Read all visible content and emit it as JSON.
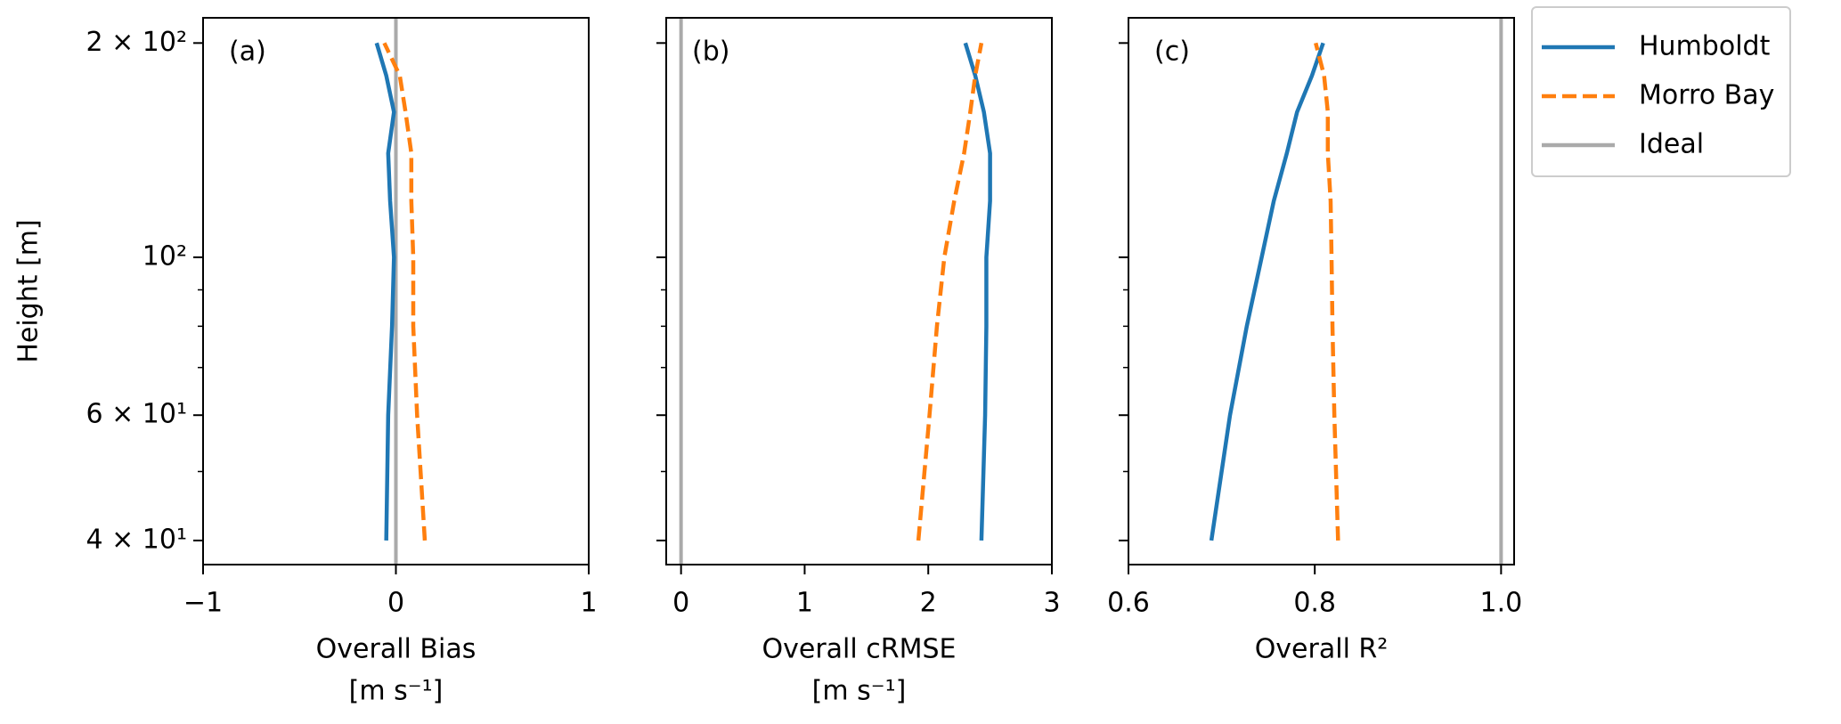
{
  "chart_data": [
    {
      "type": "line",
      "panel_label": "(a)",
      "ylabel": "Height [m]",
      "xlabel": [
        "Overall Bias",
        "[m s⁻¹]"
      ],
      "y": [
        40,
        60,
        80,
        100,
        120,
        140,
        160,
        180,
        200
      ],
      "ylog": true,
      "ylim": [
        37,
        217
      ],
      "yticks": [
        {
          "value": 40,
          "label": "4 × 10¹"
        },
        {
          "value": 60,
          "label": "6 × 10¹"
        },
        {
          "value": 100,
          "label": "10²"
        },
        {
          "value": 200,
          "label": "2 × 10²"
        }
      ],
      "yminorticks": [
        50,
        70,
        80,
        90
      ],
      "xlim": [
        -1,
        1
      ],
      "xticks": [
        {
          "value": -1,
          "label": "−1"
        },
        0,
        1
      ],
      "series": [
        {
          "name": "Humboldt",
          "color": "#1f77b4",
          "linestyle": "solid",
          "values": [
            -0.05,
            -0.04,
            -0.02,
            -0.01,
            -0.03,
            -0.04,
            -0.01,
            -0.05,
            -0.1
          ]
        },
        {
          "name": "Morro Bay",
          "color": "#ff7f0e",
          "linestyle": "dashed",
          "values": [
            0.15,
            0.11,
            0.09,
            0.09,
            0.08,
            0.08,
            0.05,
            0.02,
            -0.06
          ]
        }
      ],
      "reference": {
        "name": "Ideal",
        "color": "#aaaaaa",
        "value": 0
      },
      "legend": "outside upper right"
    },
    {
      "type": "line",
      "panel_label": "(b)",
      "xlabel": [
        "Overall cRMSE",
        "[m s⁻¹]"
      ],
      "sharey": true,
      "y": [
        40,
        60,
        80,
        100,
        120,
        140,
        160,
        180,
        200
      ],
      "ylog": true,
      "ylim": [
        37,
        217
      ],
      "xlim": [
        -0.12,
        3
      ],
      "xticks": [
        0,
        1,
        2,
        3
      ],
      "series": [
        {
          "name": "Humboldt",
          "color": "#1f77b4",
          "linestyle": "solid",
          "values": [
            2.43,
            2.46,
            2.47,
            2.47,
            2.5,
            2.5,
            2.45,
            2.38,
            2.3
          ]
        },
        {
          "name": "Morro Bay",
          "color": "#ff7f0e",
          "linestyle": "dashed",
          "values": [
            1.92,
            2.01,
            2.07,
            2.13,
            2.21,
            2.29,
            2.34,
            2.38,
            2.43
          ]
        }
      ],
      "reference": {
        "name": "Ideal",
        "color": "#aaaaaa",
        "value": 0
      }
    },
    {
      "type": "line",
      "panel_label": "(c)",
      "xlabel": [
        "Overall R²"
      ],
      "sharey": true,
      "y": [
        40,
        60,
        80,
        100,
        120,
        140,
        160,
        180,
        200
      ],
      "ylog": true,
      "ylim": [
        37,
        217
      ],
      "xlim": [
        0.6,
        1.014
      ],
      "xticks": [
        0.6,
        0.8,
        {
          "value": 1,
          "label": "1.0"
        }
      ],
      "series": [
        {
          "name": "Humboldt",
          "color": "#1f77b4",
          "linestyle": "solid",
          "values": [
            0.689,
            0.709,
            0.727,
            0.743,
            0.756,
            0.77,
            0.781,
            0.797,
            0.809
          ]
        },
        {
          "name": "Morro Bay",
          "color": "#ff7f0e",
          "linestyle": "dashed",
          "values": [
            0.825,
            0.821,
            0.819,
            0.818,
            0.817,
            0.814,
            0.814,
            0.81,
            0.801
          ]
        }
      ],
      "reference": {
        "name": "Ideal",
        "color": "#aaaaaa",
        "value": 1
      }
    }
  ]
}
